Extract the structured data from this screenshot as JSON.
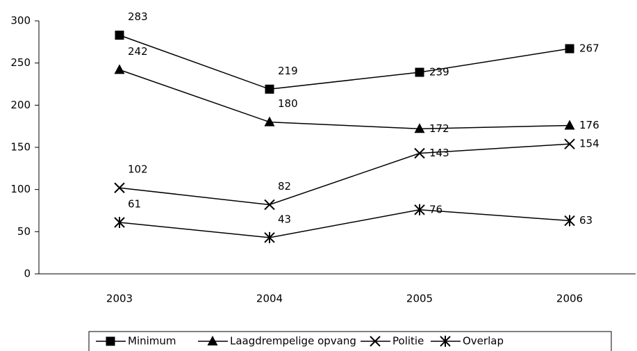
{
  "chart_data": {
    "type": "line",
    "categories": [
      "2003",
      "2004",
      "2005",
      "2006"
    ],
    "series": [
      {
        "name": "Minimum",
        "color": "#000000",
        "marker": "square",
        "values": [
          283,
          219,
          239,
          267
        ]
      },
      {
        "name": "Laagdrempelige opvang",
        "color": "#000000",
        "marker": "triangle",
        "values": [
          242,
          180,
          172,
          176
        ]
      },
      {
        "name": "Politie",
        "color": "#000000",
        "marker": "x",
        "values": [
          102,
          82,
          143,
          154
        ]
      },
      {
        "name": "Overlap",
        "color": "#000000",
        "marker": "asterisk",
        "values": [
          61,
          43,
          76,
          63
        ]
      }
    ],
    "ylim": [
      0,
      300
    ],
    "yticks": [
      0,
      50,
      100,
      150,
      200,
      250,
      300
    ],
    "grid": false,
    "legend": "bottom"
  }
}
